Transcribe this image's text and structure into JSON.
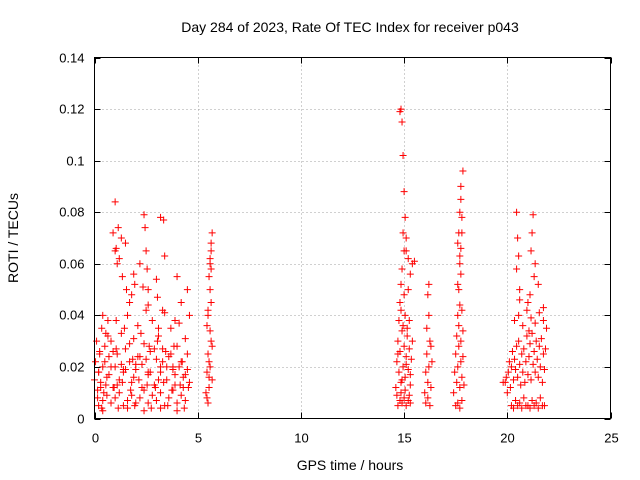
{
  "chart_data": {
    "type": "scatter",
    "title": "Day 284 of 2023, Rate Of TEC Index for receiver p043",
    "xlabel": "GPS time / hours",
    "ylabel": "ROTI / TECUs",
    "xlim": [
      0,
      25
    ],
    "ylim": [
      0,
      0.14
    ],
    "xticks": [
      0,
      5,
      10,
      15,
      20,
      25
    ],
    "yticks": [
      0,
      0.02,
      0.04,
      0.06,
      0.08,
      0.1,
      0.12,
      0.14
    ],
    "xtick_labels": [
      "0",
      "5",
      "10",
      "15",
      "20",
      "25"
    ],
    "ytick_labels": [
      "0",
      "0.02",
      "0.04",
      "0.06",
      "0.08",
      "0.1",
      "0.12",
      "0.14"
    ],
    "grid": true,
    "marker": "+",
    "color": "#ff0000",
    "series": [
      {
        "x": [
          0.0,
          0.05,
          0.1,
          0.15,
          0.2,
          0.25,
          0.3,
          0.35,
          0.4,
          0.45,
          0.5,
          0.6,
          0.7,
          0.8,
          0.9,
          1.0,
          1.05,
          1.1,
          1.2,
          1.3,
          1.4,
          1.5,
          1.6,
          1.7,
          1.8,
          1.9,
          2.0,
          2.1,
          2.2,
          2.3,
          2.4,
          2.5,
          2.6,
          2.7,
          2.8,
          2.9,
          3.0,
          3.1,
          3.2,
          3.3,
          3.4,
          3.5,
          3.6,
          3.7,
          3.8,
          3.9,
          4.0,
          4.1,
          4.2,
          4.3,
          4.4,
          4.5,
          4.6,
          0.2,
          0.4,
          0.6,
          0.8,
          1.0,
          1.2,
          1.4,
          1.6,
          1.8,
          2.0,
          2.2,
          2.4,
          2.6,
          2.8,
          3.0,
          3.2,
          3.4,
          3.6,
          3.8,
          4.0,
          4.2,
          4.4,
          0.3,
          0.7,
          1.1,
          1.5,
          1.9,
          2.3,
          2.7,
          3.1,
          3.5,
          3.9,
          4.3,
          0.5,
          0.9,
          1.3,
          1.7,
          2.1,
          2.5,
          2.9,
          3.3,
          3.7,
          4.1,
          4.5,
          0.15,
          0.55,
          0.95,
          1.35,
          1.75,
          2.15,
          2.55,
          2.95,
          3.35,
          3.75,
          4.15,
          4.55,
          0.65,
          1.45,
          2.25,
          3.05,
          3.85,
          0.35,
          1.15,
          1.95,
          2.75,
          3.55,
          4.35,
          0.25,
          1.05,
          1.85,
          2.65,
          3.45,
          4.25,
          0.4,
          1.6,
          2.4,
          3.2,
          4.0,
          0.2,
          0.8,
          1.4,
          2.0,
          2.6,
          3.2,
          3.8,
          4.4,
          0.4,
          0.55,
          0.65,
          0.9,
          1.0,
          1.0,
          1.1,
          1.15,
          1.3,
          1.35,
          1.5,
          1.55,
          1.7,
          1.8,
          1.9,
          1.95,
          2.2,
          2.4,
          2.45,
          2.5,
          2.55,
          2.6,
          3.0,
          3.05,
          3.2,
          3.3,
          3.1,
          3.9,
          4.0,
          4.2,
          4.5,
          4.6,
          1.2,
          2.35,
          3.35,
          3.4,
          1.05,
          2.6
        ],
        "y": [
          0.015,
          0.022,
          0.03,
          0.008,
          0.018,
          0.026,
          0.012,
          0.035,
          0.02,
          0.01,
          0.028,
          0.016,
          0.024,
          0.03,
          0.012,
          0.02,
          0.038,
          0.025,
          0.015,
          0.033,
          0.018,
          0.027,
          0.04,
          0.022,
          0.014,
          0.031,
          0.019,
          0.036,
          0.024,
          0.012,
          0.029,
          0.042,
          0.017,
          0.026,
          0.038,
          0.013,
          0.023,
          0.032,
          0.018,
          0.027,
          0.041,
          0.015,
          0.024,
          0.035,
          0.02,
          0.013,
          0.028,
          0.037,
          0.022,
          0.016,
          0.031,
          0.025,
          0.014,
          0.005,
          0.007,
          0.009,
          0.006,
          0.008,
          0.01,
          0.005,
          0.007,
          0.009,
          0.006,
          0.008,
          0.011,
          0.006,
          0.009,
          0.007,
          0.01,
          0.005,
          0.008,
          0.011,
          0.006,
          0.009,
          0.007,
          0.014,
          0.017,
          0.013,
          0.019,
          0.016,
          0.021,
          0.018,
          0.015,
          0.02,
          0.017,
          0.012,
          0.022,
          0.026,
          0.021,
          0.029,
          0.024,
          0.023,
          0.027,
          0.022,
          0.025,
          0.02,
          0.019,
          0.011,
          0.013,
          0.012,
          0.014,
          0.011,
          0.015,
          0.013,
          0.012,
          0.014,
          0.011,
          0.013,
          0.012,
          0.032,
          0.035,
          0.033,
          0.03,
          0.028,
          0.004,
          0.004,
          0.005,
          0.004,
          0.005,
          0.004,
          0.025,
          0.027,
          0.023,
          0.028,
          0.026,
          0.022,
          0.003,
          0.004,
          0.003,
          0.004,
          0.003,
          0.018,
          0.02,
          0.019,
          0.021,
          0.018,
          0.02,
          0.019,
          0.017,
          0.04,
          0.033,
          0.038,
          0.072,
          0.084,
          0.065,
          0.06,
          0.074,
          0.07,
          0.055,
          0.068,
          0.05,
          0.045,
          0.048,
          0.056,
          0.052,
          0.06,
          0.079,
          0.074,
          0.065,
          0.058,
          0.05,
          0.054,
          0.047,
          0.078,
          0.042,
          0.035,
          0.038,
          0.055,
          0.045,
          0.05,
          0.04,
          0.062,
          0.051,
          0.077,
          0.063,
          0.066,
          0.044
        ]
      },
      {
        "x": [
          5.4,
          5.45,
          5.5,
          5.55,
          5.6,
          5.65,
          5.7,
          5.5,
          5.6,
          5.45,
          5.55,
          5.65,
          5.5,
          5.6,
          5.7,
          5.45,
          5.55,
          5.65,
          5.5,
          5.6,
          5.55,
          5.65,
          5.7,
          5.6,
          5.65
        ],
        "y": [
          0.01,
          0.018,
          0.025,
          0.012,
          0.02,
          0.03,
          0.015,
          0.04,
          0.034,
          0.008,
          0.022,
          0.045,
          0.006,
          0.05,
          0.028,
          0.036,
          0.055,
          0.058,
          0.042,
          0.06,
          0.016,
          0.065,
          0.072,
          0.062,
          0.068
        ]
      },
      {
        "x": [
          14.6,
          14.65,
          14.7,
          14.75,
          14.8,
          14.85,
          14.9,
          14.95,
          15.0,
          15.05,
          15.1,
          15.15,
          15.2,
          15.25,
          15.3,
          15.35,
          15.4,
          14.7,
          14.8,
          14.9,
          15.0,
          15.1,
          15.2,
          15.3,
          14.75,
          14.85,
          14.95,
          15.05,
          15.15,
          15.25,
          14.65,
          14.85,
          15.05,
          15.25,
          14.7,
          14.9,
          15.1,
          15.3,
          14.8,
          15.0,
          15.2,
          14.8,
          14.85,
          14.9,
          14.95,
          15.0,
          15.05,
          15.1,
          15.2,
          15.3,
          15.4,
          15.0,
          14.9,
          14.95,
          14.85,
          15.1,
          15.5
        ],
        "y": [
          0.012,
          0.022,
          0.03,
          0.018,
          0.026,
          0.014,
          0.034,
          0.02,
          0.028,
          0.016,
          0.024,
          0.032,
          0.019,
          0.027,
          0.013,
          0.023,
          0.03,
          0.005,
          0.007,
          0.006,
          0.008,
          0.005,
          0.007,
          0.006,
          0.038,
          0.042,
          0.036,
          0.04,
          0.035,
          0.038,
          0.009,
          0.01,
          0.011,
          0.009,
          0.025,
          0.015,
          0.021,
          0.017,
          0.045,
          0.048,
          0.05,
          0.119,
          0.12,
          0.115,
          0.102,
          0.088,
          0.078,
          0.07,
          0.062,
          0.056,
          0.06,
          0.065,
          0.058,
          0.072,
          0.052,
          0.065,
          0.061
        ]
      },
      {
        "x": [
          16.0,
          16.05,
          16.1,
          16.15,
          16.2,
          16.25,
          16.3,
          16.35,
          16.05,
          16.15,
          16.25,
          16.1,
          16.2,
          16.3,
          16.15,
          16.2
        ],
        "y": [
          0.01,
          0.018,
          0.025,
          0.014,
          0.02,
          0.03,
          0.012,
          0.022,
          0.006,
          0.008,
          0.005,
          0.035,
          0.04,
          0.028,
          0.048,
          0.052
        ]
      },
      {
        "x": [
          17.4,
          17.45,
          17.5,
          17.55,
          17.6,
          17.65,
          17.7,
          17.75,
          17.8,
          17.85,
          17.9,
          17.5,
          17.6,
          17.7,
          17.8,
          17.55,
          17.65,
          17.75,
          17.85,
          17.6,
          17.7,
          17.8,
          17.65,
          17.75,
          17.7,
          17.75,
          17.8,
          17.8,
          17.75,
          17.6,
          17.65,
          17.7,
          17.75,
          17.85,
          17.6,
          17.7
        ],
        "y": [
          0.01,
          0.018,
          0.025,
          0.014,
          0.02,
          0.028,
          0.012,
          0.022,
          0.016,
          0.024,
          0.013,
          0.005,
          0.006,
          0.004,
          0.007,
          0.032,
          0.036,
          0.03,
          0.034,
          0.04,
          0.044,
          0.042,
          0.05,
          0.056,
          0.06,
          0.066,
          0.072,
          0.078,
          0.085,
          0.068,
          0.072,
          0.08,
          0.09,
          0.096,
          0.052,
          0.063
        ]
      },
      {
        "x": [
          19.9,
          20.0,
          20.05,
          20.1,
          20.15,
          20.2,
          20.25,
          20.3,
          20.35,
          20.4,
          20.45,
          20.5,
          20.55,
          20.6,
          20.65,
          20.7,
          20.75,
          20.8,
          20.85,
          20.9,
          20.95,
          21.0,
          21.05,
          21.1,
          21.15,
          21.2,
          21.25,
          21.3,
          21.35,
          21.4,
          21.45,
          21.5,
          21.55,
          21.6,
          21.65,
          21.7,
          21.75,
          21.8,
          21.85,
          21.9,
          20.2,
          20.4,
          20.6,
          20.8,
          21.0,
          21.2,
          21.4,
          21.6,
          21.8,
          20.3,
          20.5,
          20.7,
          20.9,
          21.1,
          21.3,
          21.5,
          21.7,
          20.35,
          20.55,
          20.75,
          20.95,
          21.15,
          21.35,
          21.55,
          21.75,
          19.8,
          19.95,
          20.45,
          20.5,
          20.55,
          20.6,
          21.0,
          21.1,
          21.15,
          21.2,
          21.25,
          21.3,
          21.35,
          21.5,
          21.75,
          20.45,
          20.6,
          21.05
        ],
        "y": [
          0.014,
          0.01,
          0.018,
          0.022,
          0.012,
          0.02,
          0.026,
          0.015,
          0.023,
          0.019,
          0.028,
          0.016,
          0.03,
          0.021,
          0.013,
          0.025,
          0.018,
          0.027,
          0.014,
          0.022,
          0.032,
          0.017,
          0.024,
          0.029,
          0.015,
          0.033,
          0.021,
          0.026,
          0.018,
          0.03,
          0.023,
          0.016,
          0.028,
          0.02,
          0.031,
          0.014,
          0.025,
          0.019,
          0.027,
          0.035,
          0.005,
          0.007,
          0.006,
          0.008,
          0.005,
          0.007,
          0.006,
          0.008,
          0.005,
          0.004,
          0.005,
          0.004,
          0.005,
          0.004,
          0.005,
          0.004,
          0.005,
          0.038,
          0.04,
          0.036,
          0.042,
          0.039,
          0.037,
          0.041,
          0.043,
          0.014,
          0.016,
          0.08,
          0.07,
          0.063,
          0.05,
          0.045,
          0.048,
          0.065,
          0.072,
          0.079,
          0.055,
          0.06,
          0.052,
          0.038,
          0.058,
          0.046,
          0.034
        ]
      }
    ]
  }
}
